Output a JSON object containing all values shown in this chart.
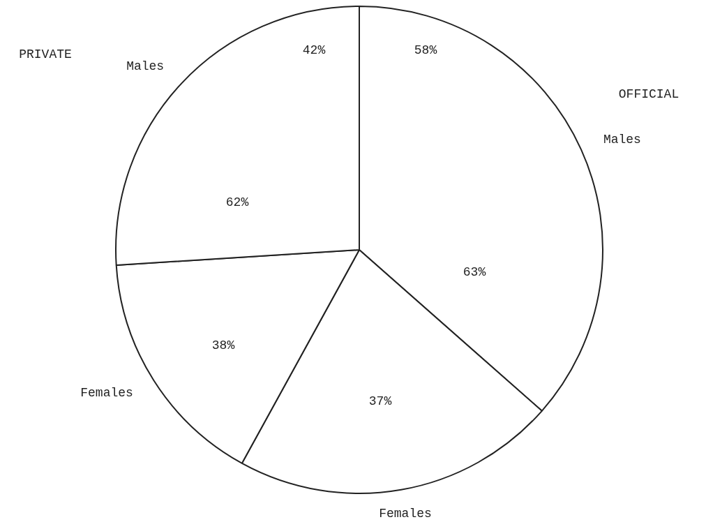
{
  "chart_data": {
    "type": "pie",
    "categories": [
      "Males",
      "Females",
      "Females",
      "Males"
    ],
    "values": [
      36.5,
      21.5,
      16,
      26
    ],
    "colors": [
      "#ffffff",
      "#ffffff",
      "#ffffff",
      "#ffffff"
    ],
    "annotations": [
      "58%",
      "42%",
      "63%",
      "37%",
      "38%",
      "62%",
      "OFFICIAL",
      "PRIVATE"
    ],
    "legend": false
  }
}
